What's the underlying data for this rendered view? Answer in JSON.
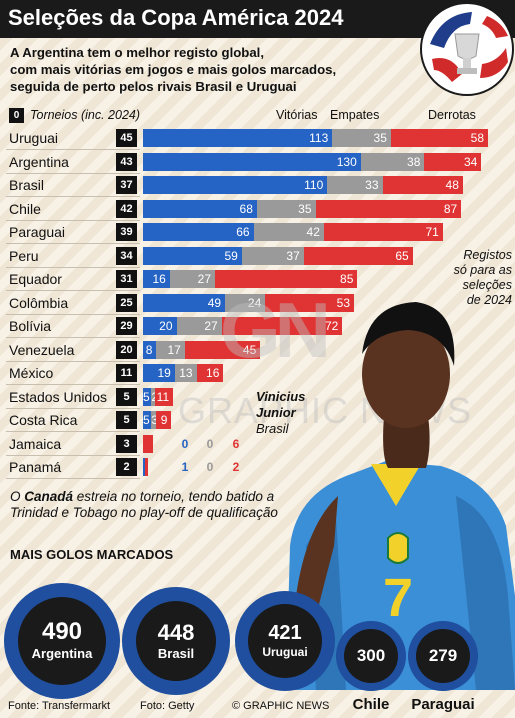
{
  "header": {
    "title": "Seleções da Copa América 2024",
    "subtitle_lines": [
      "A Argentina tem o melhor registo global,",
      "com mais vitórias em jogos e mais golos marcados,",
      "seguida de perto pelos rivais Brasil e Uruguai"
    ]
  },
  "legend": {
    "box": "0",
    "tournaments": "Torneios (inc. 2024)",
    "wins": "Vitórias",
    "draws": "Empates",
    "losses": "Derrotas"
  },
  "colors": {
    "wins": "#2563c4",
    "draws": "#9a9a9a",
    "losses": "#e03434",
    "ink": "#111111",
    "blueRing": "#1f4f9e"
  },
  "chart_data": {
    "type": "bar",
    "stacked": true,
    "orientation": "horizontal",
    "categories": [
      "Uruguai",
      "Argentina",
      "Brasil",
      "Chile",
      "Paraguai",
      "Peru",
      "Equador",
      "Colômbia",
      "Bolívia",
      "Venezuela",
      "México",
      "Estados Unidos",
      "Costa Rica",
      "Jamaica",
      "Panamá"
    ],
    "tournaments": [
      45,
      43,
      37,
      42,
      39,
      34,
      31,
      25,
      29,
      20,
      11,
      5,
      5,
      3,
      2
    ],
    "series": [
      {
        "name": "Vitórias",
        "values": [
          113,
          130,
          110,
          68,
          66,
          59,
          16,
          49,
          20,
          8,
          19,
          5,
          5,
          0,
          1
        ]
      },
      {
        "name": "Empates",
        "values": [
          35,
          38,
          33,
          35,
          42,
          37,
          27,
          24,
          27,
          17,
          13,
          2,
          3,
          0,
          0
        ]
      },
      {
        "name": "Derrotas",
        "values": [
          58,
          34,
          48,
          87,
          71,
          65,
          85,
          53,
          72,
          45,
          16,
          11,
          9,
          6,
          2
        ]
      }
    ]
  },
  "notes": {
    "right_lines": [
      "Registos",
      "só para as",
      "seleções",
      "de 2024"
    ],
    "player_lines": [
      "Vinicius",
      "Junior",
      "Brasil"
    ],
    "canada_html_parts": [
      "O ",
      "Canadá",
      " estreia no torneio, tendo batido a Trinidad e Tobago no play-off de qualificação"
    ]
  },
  "goals": {
    "title": "Mais Golos Marcados",
    "teams": [
      {
        "country": "Argentina",
        "goals": "490"
      },
      {
        "country": "Brasil",
        "goals": "448"
      },
      {
        "country": "Uruguai",
        "goals": "421"
      },
      {
        "country": "Chile",
        "goals": "300"
      },
      {
        "country": "Paraguai",
        "goals": "279"
      }
    ]
  },
  "watermark": {
    "logo": "GN",
    "text": "GRAPHIC NEWS"
  },
  "footer": {
    "source": "Fonte: Transfermarkt",
    "photo": "Foto: Getty",
    "credit": "© GRAPHIC NEWS"
  }
}
